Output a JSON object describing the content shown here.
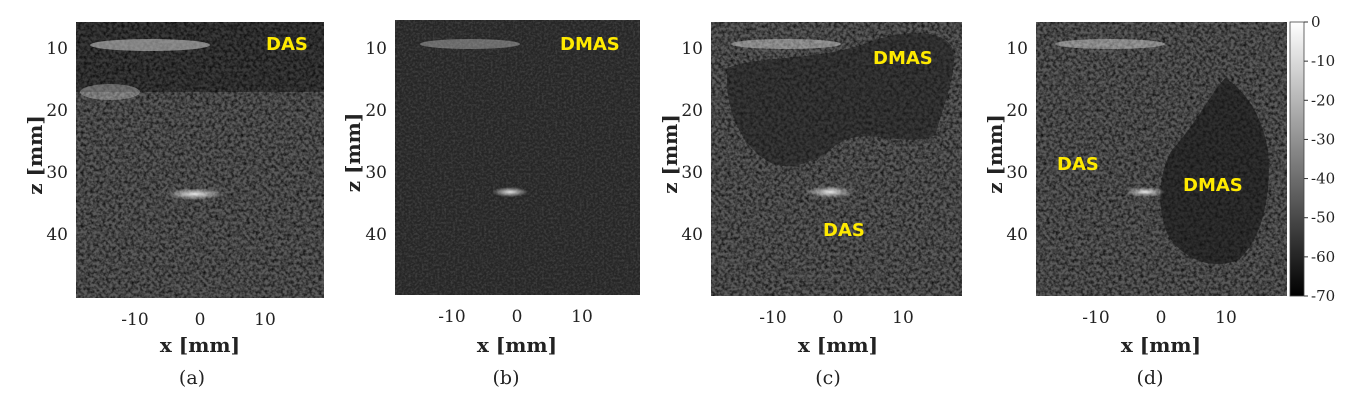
{
  "panels": [
    {
      "id": "a",
      "caption": "(a)",
      "xlabel": "x [mm]",
      "ylabel": "z [mm]",
      "xticks": [
        "-10",
        "0",
        "10"
      ],
      "yticks": [
        "10",
        "20",
        "30",
        "40"
      ],
      "labels": [
        "DAS"
      ],
      "brightness": 0.85
    },
    {
      "id": "b",
      "caption": "(b)",
      "xlabel": "x [mm]",
      "ylabel": "z [mm]",
      "xticks": [
        "-10",
        "0",
        "10"
      ],
      "yticks": [
        "10",
        "20",
        "30",
        "40"
      ],
      "labels": [
        "DMAS"
      ],
      "brightness": 0.5
    },
    {
      "id": "c",
      "caption": "(c)",
      "xlabel": "x [mm]",
      "ylabel": "z [mm]",
      "xticks": [
        "-10",
        "0",
        "10"
      ],
      "yticks": [
        "10",
        "20",
        "30",
        "40"
      ],
      "labels": [
        "DMAS",
        "DAS"
      ],
      "brightness": 0.85
    },
    {
      "id": "d",
      "caption": "(d)",
      "xlabel": "x [mm]",
      "ylabel": "z [mm]",
      "xticks": [
        "-10",
        "0",
        "10"
      ],
      "yticks": [
        "10",
        "20",
        "30",
        "40"
      ],
      "labels": [
        "DAS",
        "DMAS"
      ],
      "brightness": 0.85
    }
  ],
  "colorbar": {
    "ticks": [
      "0",
      "-10",
      "-20",
      "-30",
      "-40",
      "-50",
      "-60",
      "-70"
    ],
    "range": [
      -70,
      0
    ]
  },
  "colors": {
    "label_yellow": "#ffea00"
  }
}
